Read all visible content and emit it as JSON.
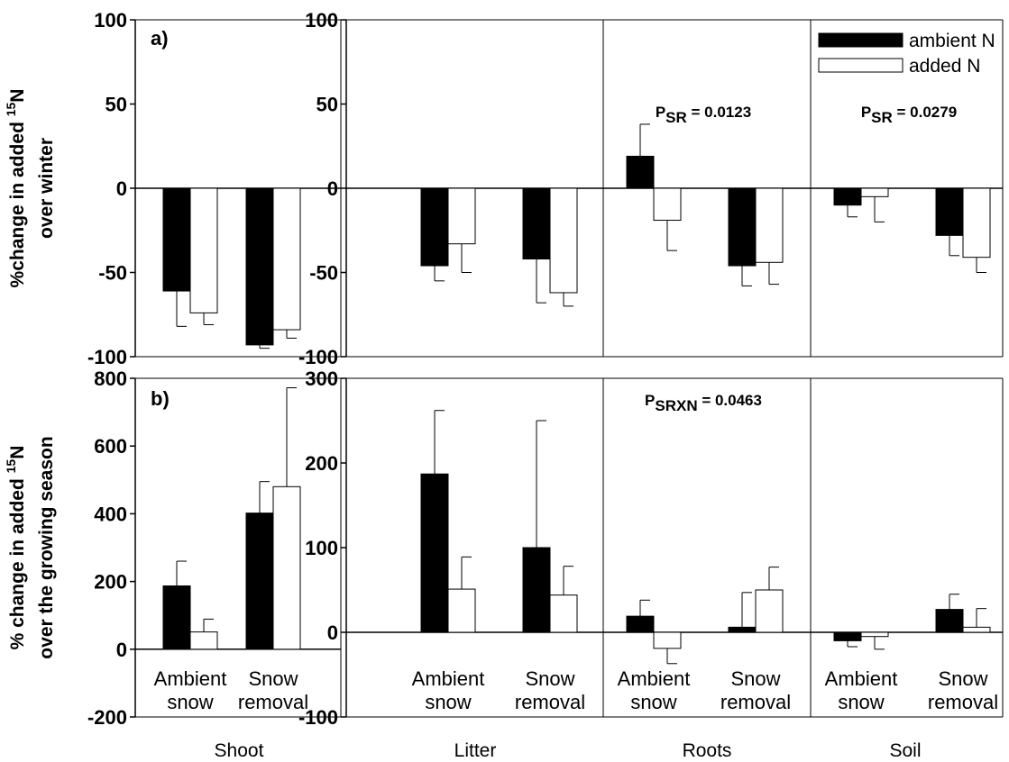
{
  "chart_data": [
    {
      "type": "bar",
      "panel": "a",
      "panel_label": "a)",
      "ylabel_lines": [
        "%change in added ^15N",
        "over winter"
      ],
      "compartments": [
        "Shoot",
        "Litter",
        "Roots",
        "Soil"
      ],
      "categories": [
        [
          "Ambient",
          "snow"
        ],
        [
          "Snow",
          "removal"
        ]
      ],
      "legend": {
        "position": "top-right",
        "entries": [
          "ambient N",
          "added N"
        ],
        "colors": [
          "#000000",
          "#ffffff"
        ]
      },
      "ylim_shoot": [
        -100,
        100
      ],
      "ylim_other": [
        -100,
        100
      ],
      "yticks_shoot": [
        "100",
        "50",
        "0",
        "-50",
        "-100"
      ],
      "yticks_other": [
        "100",
        "50",
        "0",
        "-50",
        "-100"
      ],
      "series": [
        {
          "name": "ambient N",
          "values": {
            "Shoot": [
              -61,
              -93
            ],
            "Litter": [
              -46,
              -42
            ],
            "Roots": [
              19,
              -46
            ],
            "Soil": [
              -10,
              -28
            ]
          },
          "errors": {
            "Shoot": [
              21,
              2
            ],
            "Litter": [
              9,
              26
            ],
            "Roots": [
              19,
              12
            ],
            "Soil": [
              7,
              12
            ]
          }
        },
        {
          "name": "added N",
          "values": {
            "Shoot": [
              -74,
              -84
            ],
            "Litter": [
              -33,
              -62
            ],
            "Roots": [
              -19,
              -44
            ],
            "Soil": [
              -5,
              -41
            ]
          },
          "errors": {
            "Shoot": [
              7,
              5
            ],
            "Litter": [
              17,
              8
            ],
            "Roots": [
              18,
              13
            ],
            "Soil": [
              15,
              9
            ]
          }
        }
      ],
      "annotations": [
        {
          "compartment": "Roots",
          "main": "P",
          "sub": "SR",
          "rest": " = 0.0123"
        },
        {
          "compartment": "Soil",
          "main": "P",
          "sub": "SR",
          "rest": " = 0.0279"
        }
      ]
    },
    {
      "type": "bar",
      "panel": "b",
      "panel_label": "b)",
      "ylabel_lines": [
        "% change in added ^15N",
        "over the growing season"
      ],
      "compartments": [
        "Shoot",
        "Litter",
        "Roots",
        "Soil"
      ],
      "categories": [
        [
          "Ambient",
          "snow"
        ],
        [
          "Snow",
          "removal"
        ]
      ],
      "ylim_shoot": [
        -200,
        800
      ],
      "ylim_other": [
        -100,
        300
      ],
      "yticks_shoot": [
        "800",
        "600",
        "400",
        "200",
        "0",
        "-200"
      ],
      "yticks_other": [
        "300",
        "200",
        "100",
        "0",
        "-100"
      ],
      "series": [
        {
          "name": "ambient N",
          "values": {
            "Shoot": [
              187,
              402
            ],
            "Litter": [
              187,
              100
            ],
            "Roots": [
              19,
              6
            ],
            "Soil": [
              -10,
              27
            ]
          },
          "errors": {
            "Shoot": [
              73,
              93
            ],
            "Litter": [
              75,
              150
            ],
            "Roots": [
              19,
              41
            ],
            "Soil": [
              7,
              18
            ]
          }
        },
        {
          "name": "added N",
          "values": {
            "Shoot": [
              51,
              480
            ],
            "Litter": [
              51,
              44
            ],
            "Roots": [
              -19,
              50
            ],
            "Soil": [
              -5,
              6
            ]
          },
          "errors": {
            "Shoot": [
              38,
              292
            ],
            "Litter": [
              38,
              34
            ],
            "Roots": [
              18,
              27
            ],
            "Soil": [
              15,
              22
            ]
          }
        }
      ],
      "annotations": [
        {
          "compartment": "Roots",
          "main": "P",
          "sub": "SRXN",
          "rest": " = 0.0463"
        }
      ]
    }
  ]
}
